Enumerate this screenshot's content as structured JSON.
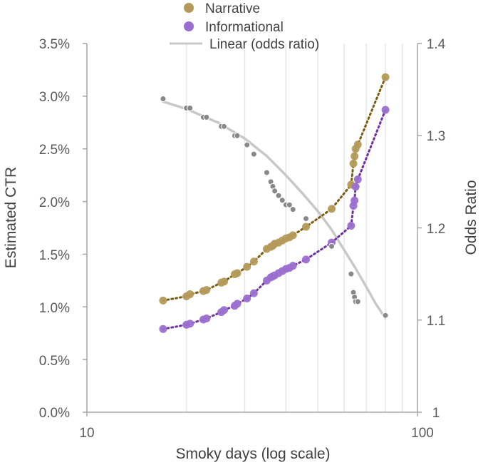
{
  "colors": {
    "narrative": "#b49a5a",
    "narrative_line": "#7a5c10",
    "informational": "#9b6fcf",
    "informational_line": "#7030a0",
    "odds_line": "#c8c8c8",
    "odds_marker": "#888888",
    "grid": "#e6e6e6",
    "axis": "#a6a6a6"
  },
  "chart_data": {
    "type": "scatter",
    "title": "",
    "xlabel": "Smoky days (log scale)",
    "ylabel": "Estimated CTR",
    "y2label": "Odds Ratio",
    "xscale": "log",
    "xlim": [
      10,
      100
    ],
    "ylim": [
      0,
      0.035
    ],
    "y2lim": [
      1,
      1.4
    ],
    "x_tick_labels": [
      "10",
      "100"
    ],
    "y_tick_labels": [
      "0.0%",
      "0.5%",
      "1.0%",
      "1.5%",
      "2.0%",
      "2.5%",
      "3.0%",
      "3.5%"
    ],
    "y2_tick_labels": [
      "1",
      "1.1",
      "1.2",
      "1.3",
      "1.4"
    ],
    "grid": "vertical minor log grid",
    "legend_position": "top",
    "legend": [
      {
        "label": "Narrative",
        "kind": "marker",
        "color_key": "narrative"
      },
      {
        "label": "Informational",
        "kind": "marker",
        "color_key": "informational"
      },
      {
        "label": "Linear (odds ratio)",
        "kind": "line",
        "color_key": "odds_line"
      }
    ],
    "series": [
      {
        "name": "Narrative",
        "axis": "left",
        "x": [
          17,
          20,
          20.5,
          22.5,
          23,
          25.5,
          26,
          28,
          28.5,
          30.5,
          32,
          35,
          36,
          36.5,
          37,
          38,
          39,
          40,
          41,
          42,
          46,
          55,
          63,
          64,
          64.5,
          65,
          66,
          80
        ],
        "y": [
          0.0106,
          0.011,
          0.0112,
          0.0115,
          0.0116,
          0.0123,
          0.0124,
          0.0131,
          0.0132,
          0.0138,
          0.0143,
          0.0155,
          0.0157,
          0.0158,
          0.016,
          0.0161,
          0.0163,
          0.0165,
          0.0166,
          0.0168,
          0.0176,
          0.0193,
          0.0216,
          0.0236,
          0.0243,
          0.025,
          0.0254,
          0.0318
        ]
      },
      {
        "name": "Informational",
        "axis": "left",
        "x": [
          17,
          20,
          20.5,
          22.5,
          23,
          25.5,
          26,
          28,
          28.5,
          30.5,
          32,
          35,
          36,
          36.5,
          37,
          38,
          39,
          40,
          41,
          42,
          46,
          55,
          63,
          64,
          64.5,
          65,
          66,
          80
        ],
        "y": [
          0.0079,
          0.0083,
          0.0084,
          0.0088,
          0.0089,
          0.0095,
          0.0097,
          0.0101,
          0.0103,
          0.0108,
          0.0113,
          0.0125,
          0.0128,
          0.0129,
          0.013,
          0.0132,
          0.0134,
          0.0136,
          0.0137,
          0.0139,
          0.0145,
          0.0161,
          0.0177,
          0.0196,
          0.0201,
          0.0214,
          0.0221,
          0.0287
        ]
      },
      {
        "name": "Odds ratio",
        "axis": "right",
        "x": [
          17,
          20,
          20.5,
          22.5,
          23,
          25.5,
          26,
          28,
          28.5,
          30.5,
          32,
          35,
          36,
          36.5,
          37,
          38,
          39,
          40,
          41,
          42,
          46,
          55,
          63,
          64,
          64.5,
          65,
          66,
          80
        ],
        "y": [
          1.34,
          1.33,
          1.33,
          1.32,
          1.32,
          1.31,
          1.31,
          1.3,
          1.3,
          1.29,
          1.28,
          1.26,
          1.25,
          1.245,
          1.24,
          1.235,
          1.23,
          1.225,
          1.225,
          1.22,
          1.21,
          1.18,
          1.15,
          1.13,
          1.125,
          1.12,
          1.12,
          1.105
        ]
      },
      {
        "name": "Linear (odds ratio)",
        "axis": "right",
        "kind": "trendline",
        "x": [
          17,
          20,
          25,
          30,
          35,
          40,
          45,
          50,
          55,
          60,
          65,
          70,
          75,
          80
        ],
        "y": [
          1.337,
          1.329,
          1.314,
          1.297,
          1.278,
          1.257,
          1.237,
          1.218,
          1.198,
          1.176,
          1.156,
          1.136,
          1.117,
          1.102
        ]
      }
    ]
  }
}
